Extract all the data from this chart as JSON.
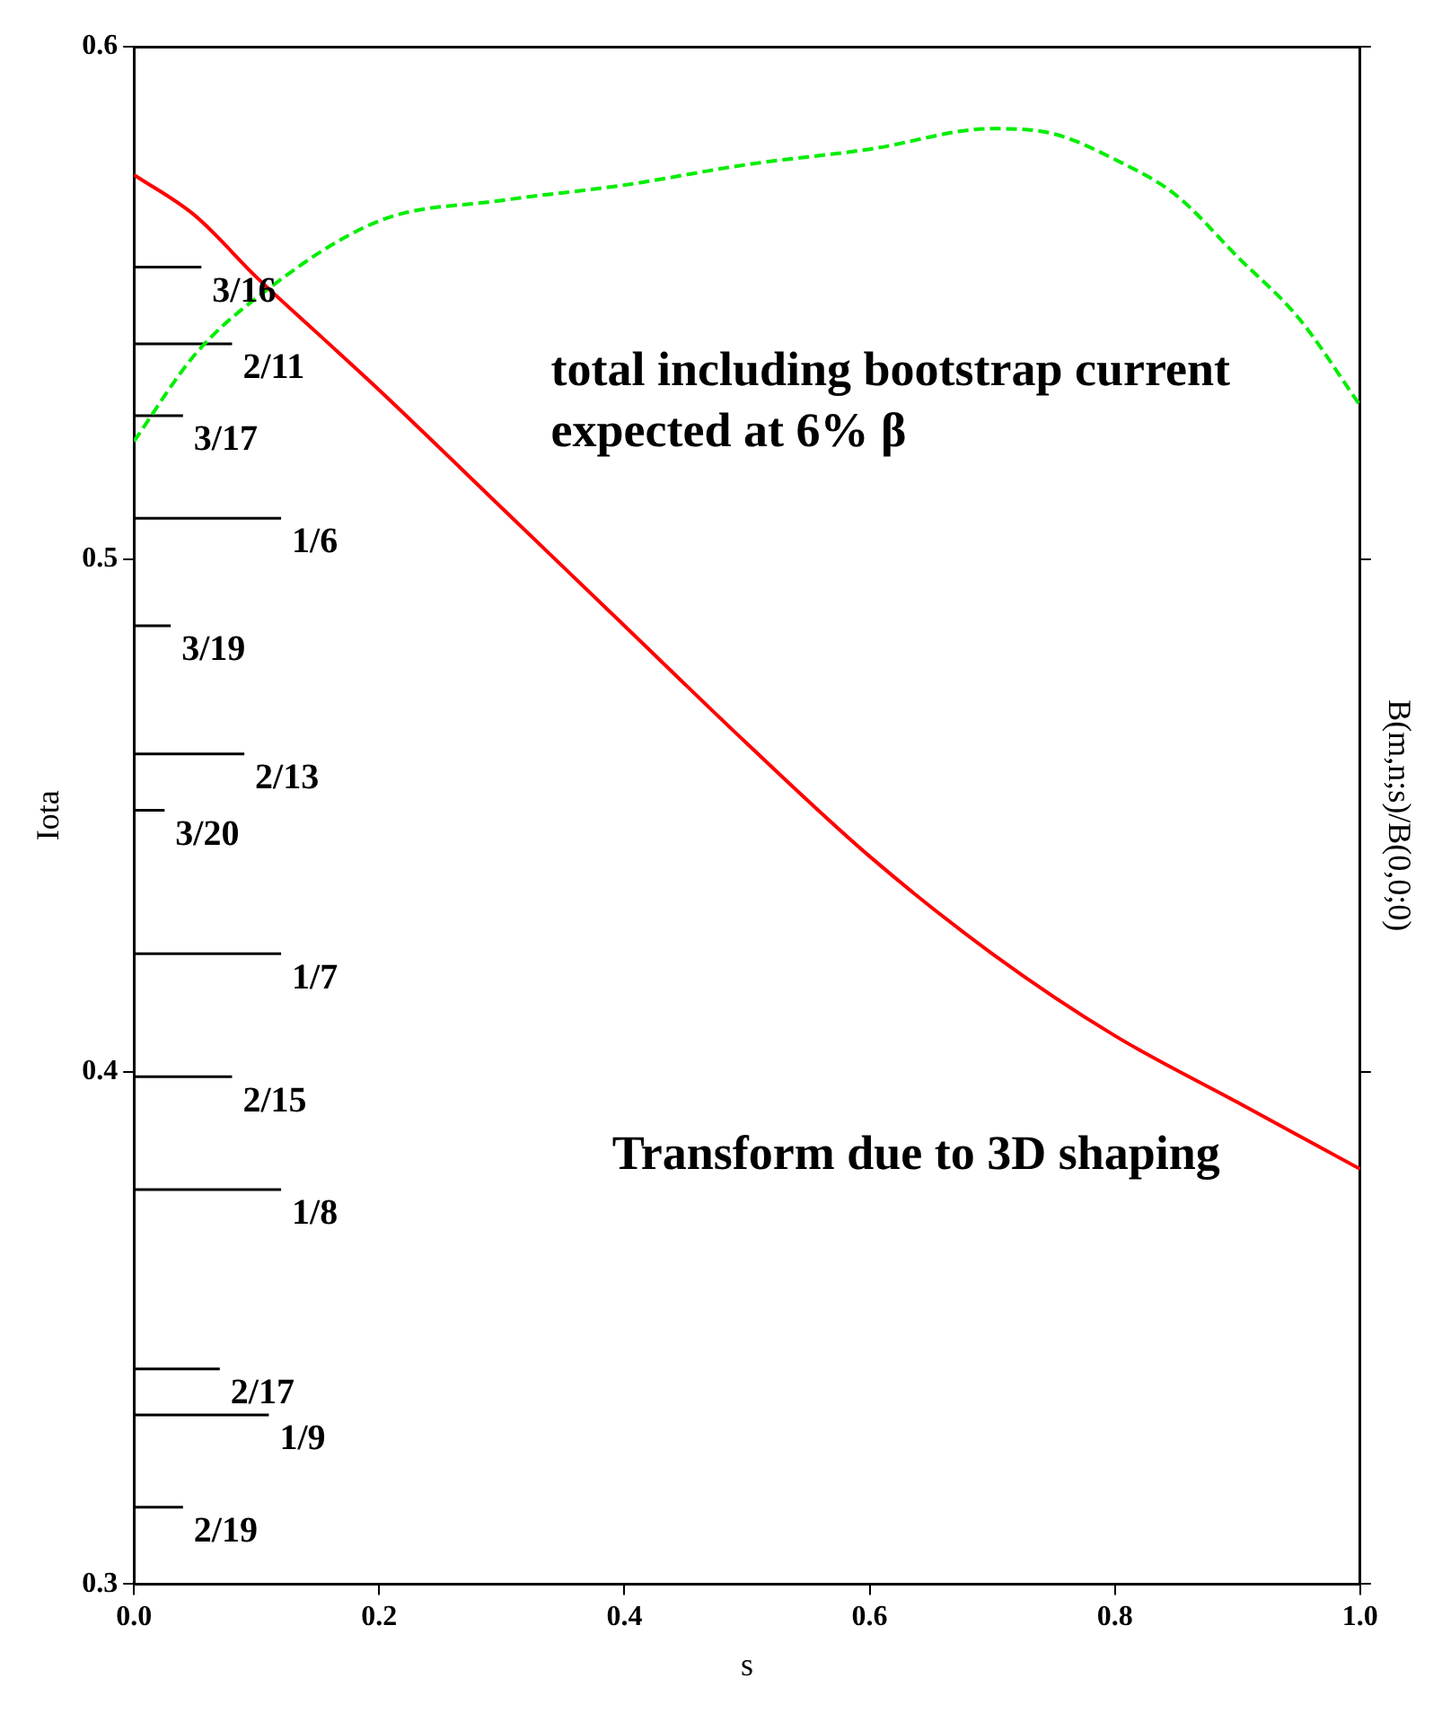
{
  "chart_data": {
    "type": "line",
    "xlabel": "s",
    "ylabel": "Iota",
    "y2label": "B(m,n;s)/B(0,0;0)",
    "xlim": [
      0,
      1
    ],
    "ylim": [
      0.3,
      0.6
    ],
    "xticks": [
      {
        "value": 0,
        "label": "0.0"
      },
      {
        "value": 0.2,
        "label": "0.2"
      },
      {
        "value": 0.4,
        "label": "0.4"
      },
      {
        "value": 0.6,
        "label": "0.6"
      },
      {
        "value": 0.8,
        "label": "0.8"
      },
      {
        "value": 1,
        "label": "1.0"
      }
    ],
    "yticks": [
      0.3,
      0.4,
      0.5,
      0.6
    ],
    "grid": false,
    "legend": false,
    "marker": "none",
    "series": [
      {
        "color": "#ff0000",
        "line_style": "solid",
        "x": [
          0,
          0.05,
          0.1,
          0.15,
          0.2,
          0.3,
          0.4,
          0.5,
          0.6,
          0.7,
          0.8,
          0.9,
          1.0
        ],
        "values": [
          0.575,
          0.567,
          0.555,
          0.544,
          0.533,
          0.51,
          0.487,
          0.464,
          0.442,
          0.423,
          0.407,
          0.394,
          0.381
        ]
      },
      {
        "color": "#00ee00",
        "line_style": "dashed",
        "x": [
          0,
          0.05,
          0.1,
          0.2,
          0.3,
          0.4,
          0.5,
          0.6,
          0.7,
          0.75,
          0.8,
          0.85,
          0.9,
          0.95,
          1.0
        ],
        "values": [
          0.523,
          0.54,
          0.551,
          0.566,
          0.57,
          0.573,
          0.577,
          0.58,
          0.584,
          0.583,
          0.578,
          0.571,
          0.559,
          0.547,
          0.53
        ]
      },
      {
        "name": "3/16",
        "color": "#000000",
        "x": [
          0,
          0.055
        ],
        "values": [
          0.557,
          0.557
        ]
      },
      {
        "name": "2/11",
        "color": "#000000",
        "x": [
          0,
          0.08
        ],
        "values": [
          0.542,
          0.542
        ]
      },
      {
        "name": "3/17",
        "color": "#000000",
        "x": [
          0,
          0.04
        ],
        "values": [
          0.528,
          0.528
        ]
      },
      {
        "name": "1/6",
        "color": "#000000",
        "x": [
          0,
          0.12
        ],
        "values": [
          0.508,
          0.508
        ]
      },
      {
        "name": "3/19",
        "color": "#000000",
        "x": [
          0,
          0.03
        ],
        "values": [
          0.487,
          0.487
        ]
      },
      {
        "name": "2/13",
        "color": "#000000",
        "x": [
          0,
          0.09
        ],
        "values": [
          0.462,
          0.462
        ]
      },
      {
        "name": "3/20",
        "color": "#000000",
        "x": [
          0,
          0.025
        ],
        "values": [
          0.451,
          0.451
        ]
      },
      {
        "name": "1/7",
        "color": "#000000",
        "x": [
          0,
          0.12
        ],
        "values": [
          0.423,
          0.423
        ]
      },
      {
        "name": "2/15",
        "color": "#000000",
        "x": [
          0,
          0.08
        ],
        "values": [
          0.399,
          0.399
        ]
      },
      {
        "name": "1/8",
        "color": "#000000",
        "x": [
          0,
          0.12
        ],
        "values": [
          0.377,
          0.377
        ]
      },
      {
        "name": "2/17",
        "color": "#000000",
        "x": [
          0,
          0.07
        ],
        "values": [
          0.342,
          0.342
        ]
      },
      {
        "name": "1/9",
        "color": "#000000",
        "x": [
          0,
          0.11
        ],
        "values": [
          0.333,
          0.333
        ]
      },
      {
        "name": "2/19",
        "color": "#000000",
        "x": [
          0,
          0.04
        ],
        "values": [
          0.315,
          0.315
        ]
      }
    ],
    "annotations": [
      "total including bootstrap current expected at 6% β",
      "Transform due to 3D shaping"
    ]
  }
}
